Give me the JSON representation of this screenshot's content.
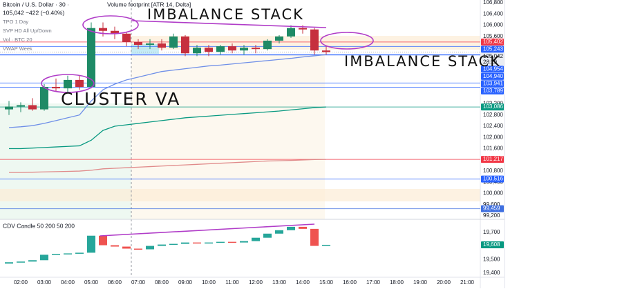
{
  "chart_data": [
    {
      "type": "candlestick",
      "title": "Bitcoin / U.S. Dollar · 30 ·",
      "price_line": "105,042 −422 (−0.40%)",
      "indicators": [
        "Volume footprint [ATR 14, Delta]",
        "TPO 1 Day",
        "SVP HD All Up/Down",
        "Vol · BTC 20",
        "VWAP Week"
      ],
      "annotations": [
        "IMBALANCE STACK",
        "IMBALANCE STACK",
        "CLUSTER VA"
      ],
      "categories": [
        null,
        "02:00",
        null,
        "03:00",
        null,
        "04:00",
        null,
        "05:00",
        null,
        "06:00",
        null,
        "07:00",
        null,
        "08:00",
        null,
        "09:00",
        null,
        "10:00",
        null,
        "11:00",
        null,
        "12:00",
        null,
        "13:00",
        null,
        "14:00",
        null,
        "15:00"
      ],
      "future_times": [
        "16:00",
        "17:00",
        "18:00",
        "19:00",
        "20:00",
        "21:00"
      ],
      "open": [
        103000,
        103100,
        103150,
        103000,
        103800,
        103750,
        104050,
        103800,
        105900,
        105800,
        105700,
        105400,
        105300,
        105350,
        105200,
        105600,
        105000,
        105200,
        105050,
        105250,
        105100,
        105200,
        105150,
        105450,
        105600,
        105900,
        105850,
        105100
      ],
      "high": [
        103300,
        103250,
        103400,
        103900,
        104100,
        104200,
        104200,
        106100,
        106100,
        105950,
        105750,
        105500,
        105500,
        105500,
        105700,
        105650,
        105300,
        105300,
        105300,
        105350,
        105300,
        105300,
        105500,
        105650,
        106000,
        106000,
        105900,
        105250
      ],
      "low": [
        102800,
        102900,
        102950,
        102950,
        103650,
        103600,
        103700,
        103750,
        105600,
        105500,
        105250,
        105150,
        105150,
        105100,
        105150,
        104900,
        104900,
        104900,
        104950,
        105000,
        104950,
        105000,
        105100,
        105350,
        105550,
        105700,
        104950,
        104950
      ],
      "close": [
        103100,
        103150,
        103000,
        103800,
        103750,
        104050,
        103800,
        105900,
        105800,
        105700,
        105400,
        105300,
        105350,
        105200,
        105600,
        105000,
        105200,
        105050,
        105250,
        105100,
        105200,
        105150,
        105450,
        105600,
        105900,
        105850,
        105100,
        105042
      ],
      "colors": {
        "up": "#1e8a66",
        "down": "#c62f3e"
      },
      "lines": [
        {
          "color": "#089981",
          "values": [
            101600,
            101600,
            101620,
            101640,
            101660,
            101680,
            101700,
            101900,
            102250,
            102400,
            102450,
            102500,
            102550,
            102600,
            102650,
            102700,
            102730,
            102760,
            102790,
            102820,
            102850,
            102880,
            102910,
            102940,
            102980,
            103020,
            103060,
            103086
          ]
        },
        {
          "color": "#6f8fe8",
          "values": [
            102350,
            102380,
            102420,
            102500,
            102600,
            102700,
            102800,
            103300,
            103700,
            103900,
            104050,
            104150,
            104250,
            104350,
            104400,
            104450,
            104500,
            104550,
            104580,
            104620,
            104660,
            104700,
            104740,
            104780,
            104820,
            104870,
            104910,
            104954
          ]
        },
        {
          "color": "#e08a8a",
          "values": [
            100750,
            100750,
            100760,
            100770,
            100780,
            100790,
            100800,
            100830,
            100880,
            100900,
            100920,
            100940,
            100960,
            100980,
            101000,
            101020,
            101040,
            101060,
            101080,
            101100,
            101120,
            101140,
            101160,
            101170,
            101180,
            101195,
            101210,
            101217
          ]
        }
      ],
      "levels": [
        {
          "value": 105402,
          "label": "105,402",
          "color": "#f23645"
        },
        {
          "value": 105243,
          "label": "105,243",
          "color": "#2962ff"
        },
        {
          "value": 105042,
          "label": "105,042",
          "sub": "28:19",
          "color": "#e9ecf2"
        },
        {
          "value": 104954,
          "label": "104,954",
          "color": "#2962ff"
        },
        {
          "value": 104940,
          "label": "104,940",
          "color": "#2962ff"
        },
        {
          "value": 103941,
          "label": "103,941",
          "color": "#2962ff"
        },
        {
          "value": 103789,
          "label": "103,789",
          "color": "#2962ff"
        },
        {
          "value": 103086,
          "label": "103,086",
          "color": "#089981"
        },
        {
          "value": 101217,
          "label": "101,217",
          "color": "#f23645"
        },
        {
          "value": 100516,
          "label": "100,516",
          "color": "#2962ff"
        },
        {
          "value": 99459,
          "label": "99,459",
          "color": "#3f6fe0"
        }
      ],
      "ylim": [
        99080,
        106900
      ],
      "yticks": [
        {
          "value": 106800,
          "label": "106,800"
        },
        {
          "value": 106400,
          "label": "106,400"
        },
        {
          "value": 106000,
          "label": "106,000"
        },
        {
          "value": 105600,
          "label": "105,600"
        },
        {
          "value": 103200,
          "label": "103,200"
        },
        {
          "value": 102800,
          "label": "102,800"
        },
        {
          "value": 102400,
          "label": "102,400"
        },
        {
          "value": 102000,
          "label": "102,000"
        },
        {
          "value": 101600,
          "label": "101,600"
        },
        {
          "value": 100800,
          "label": "100,800"
        },
        {
          "value": 100400,
          "label": "100,400"
        },
        {
          "value": 100000,
          "label": "100,000"
        },
        {
          "value": 99600,
          "label": "99,600"
        },
        {
          "value": 99200,
          "label": "99,200"
        }
      ]
    },
    {
      "type": "candlestick",
      "title": "CDV Candle 50 200 50 200",
      "open": [
        19470,
        19480,
        19485,
        19495,
        19535,
        19540,
        19545,
        19550,
        19675,
        19605,
        19595,
        19580,
        19575,
        19600,
        19610,
        19615,
        19625,
        19620,
        19625,
        19630,
        19625,
        19635,
        19660,
        19690,
        19715,
        19740,
        19725,
        19600
      ],
      "close": [
        19480,
        19485,
        19495,
        19535,
        19540,
        19545,
        19550,
        19675,
        19605,
        19595,
        19580,
        19575,
        19600,
        19610,
        19615,
        19625,
        19620,
        19625,
        19630,
        19625,
        19635,
        19660,
        19690,
        19715,
        19740,
        19725,
        19600,
        19608
      ],
      "colors": {
        "up": "#26a69a",
        "down": "#ef5350"
      },
      "levels": [
        {
          "value": 19608,
          "label": "19,608",
          "color": "#089981"
        }
      ],
      "ylim": [
        19370,
        19785
      ],
      "yticks": [
        {
          "value": 19700,
          "label": "19,700"
        },
        {
          "value": 19500,
          "label": "19,500"
        },
        {
          "value": 19400,
          "label": "19,400"
        }
      ]
    }
  ]
}
